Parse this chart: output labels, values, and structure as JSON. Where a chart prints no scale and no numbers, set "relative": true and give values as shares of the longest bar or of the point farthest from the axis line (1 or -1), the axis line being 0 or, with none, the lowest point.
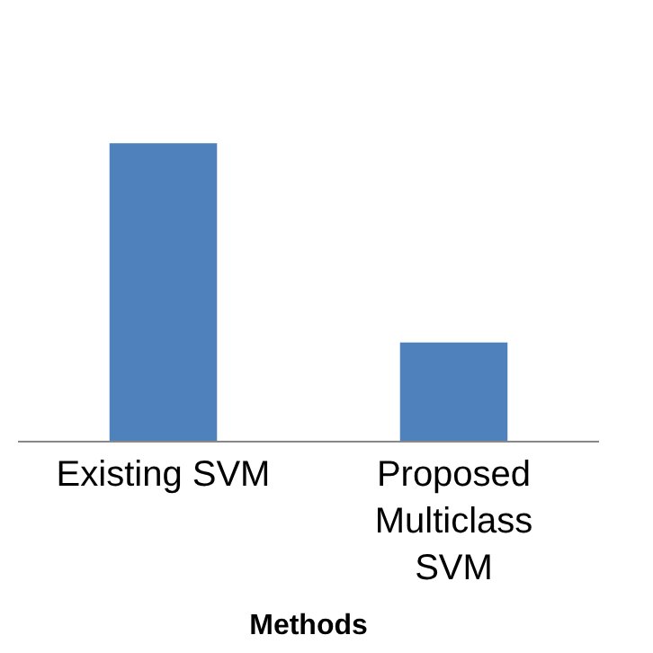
{
  "chart_data": {
    "type": "bar",
    "relative": true,
    "xlabel": "Methods",
    "categories": [
      "Existing SVM",
      "Proposed Multiclass SVM"
    ],
    "series": [
      {
        "color": "#4f81bd",
        "values": [
          1,
          0.33
        ]
      }
    ]
  }
}
